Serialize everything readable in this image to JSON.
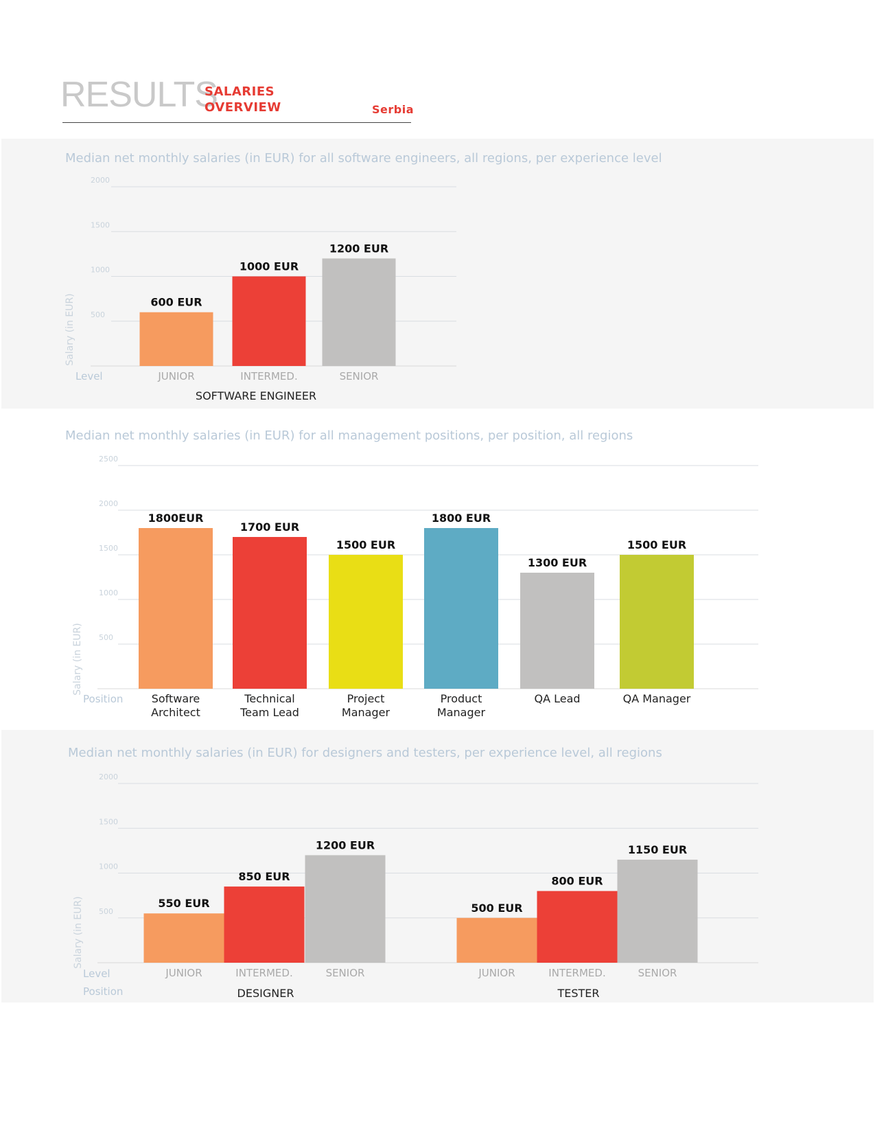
{
  "header": {
    "title": "RESULTS",
    "subtitle_line1": "SALARIES",
    "subtitle_line2": "OVERVIEW",
    "country": "Serbia"
  },
  "colors": {
    "orange": "#f69b5f",
    "red": "#ec4037",
    "gray": "#c1c0bf",
    "yellow": "#e9de15",
    "blue": "#5eabc4",
    "lime": "#c2cb33",
    "muted_text": "#b9c9d8"
  },
  "chart_data": [
    {
      "type": "bar",
      "title": "Median net monthly salaries (in EUR) for all software engineers, all regions, per experience level",
      "ylabel": "Salary (in EUR)",
      "row_label": "Level",
      "yticks": [
        500,
        1000,
        1500,
        2000
      ],
      "ylim": [
        0,
        2000
      ],
      "groups": [
        {
          "name": "SOFTWARE ENGINEER",
          "categories": [
            "JUNIOR",
            "INTERMED.",
            "SENIOR"
          ],
          "values": [
            600,
            1000,
            1200
          ],
          "labels": [
            "600 EUR",
            "1000 EUR",
            "1200 EUR"
          ],
          "colors": [
            "#f69b5f",
            "#ec4037",
            "#c1c0bf"
          ]
        }
      ]
    },
    {
      "type": "bar",
      "title": "Median net monthly salaries (in EUR) for all management positions, per position, all regions",
      "ylabel": "Salary (in EUR)",
      "row_label": "Position",
      "yticks": [
        500,
        1000,
        1500,
        2000,
        2500
      ],
      "ylim": [
        0,
        2500
      ],
      "groups": [
        {
          "name": "",
          "categories": [
            "Software\nArchitect",
            "Technical\nTeam Lead",
            "Project\nManager",
            "Product\nManager",
            "QA Lead",
            "QA Manager"
          ],
          "values": [
            1800,
            1700,
            1500,
            1800,
            1300,
            1500
          ],
          "labels": [
            "1800EUR",
            "1700 EUR",
            "1500 EUR",
            "1800 EUR",
            "1300 EUR",
            "1500 EUR"
          ],
          "colors": [
            "#f69b5f",
            "#ec4037",
            "#e9de15",
            "#5eabc4",
            "#c1c0bf",
            "#c2cb33"
          ]
        }
      ]
    },
    {
      "type": "bar",
      "title": "Median net monthly salaries (in EUR) for designers and testers, per experience level, all regions",
      "ylabel": "Salary (in EUR)",
      "row_label": "Level",
      "row_label2": "Position",
      "yticks": [
        500,
        1000,
        1500,
        2000
      ],
      "ylim": [
        0,
        2000
      ],
      "groups": [
        {
          "name": "DESIGNER",
          "categories": [
            "JUNIOR",
            "INTERMED.",
            "SENIOR"
          ],
          "values": [
            550,
            850,
            1200
          ],
          "labels": [
            "550 EUR",
            "850 EUR",
            "1200 EUR"
          ],
          "colors": [
            "#f69b5f",
            "#ec4037",
            "#c1c0bf"
          ]
        },
        {
          "name": "TESTER",
          "categories": [
            "JUNIOR",
            "INTERMED.",
            "SENIOR"
          ],
          "values": [
            500,
            800,
            1150
          ],
          "labels": [
            "500 EUR",
            "800 EUR",
            "1150 EUR"
          ],
          "colors": [
            "#f69b5f",
            "#ec4037",
            "#c1c0bf"
          ]
        }
      ]
    }
  ]
}
